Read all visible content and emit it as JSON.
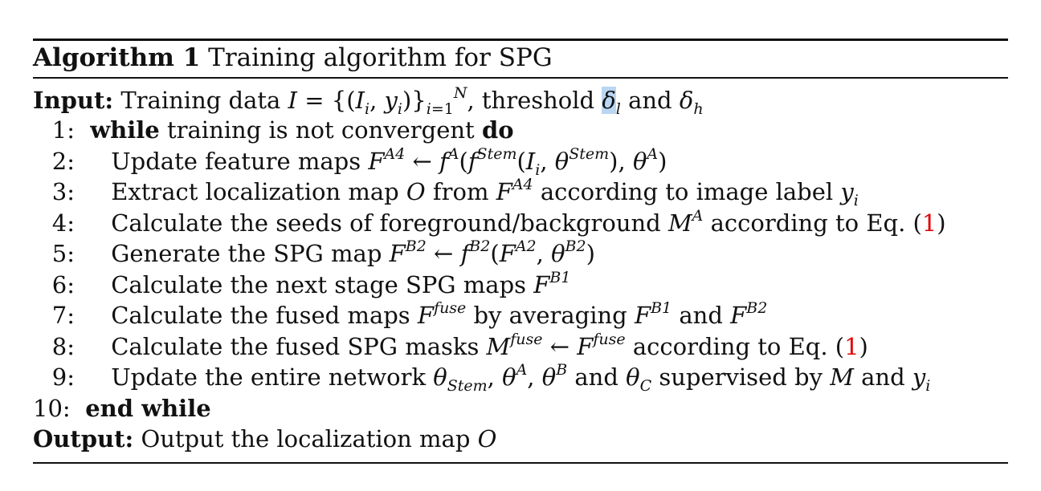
{
  "algorithm": {
    "number_label": "Algorithm 1",
    "title": "Training algorithm for SPG"
  },
  "input": {
    "label": "Input:",
    "text_a": "Training data",
    "text_b": ", threshold",
    "text_c": "and"
  },
  "steps": [
    {
      "num": "1:",
      "kw1": "while",
      "text": "training is not convergent",
      "kw2": "do"
    },
    {
      "num": "2:",
      "text": "Update feature maps"
    },
    {
      "num": "3:",
      "text_a": "Extract localization map",
      "text_b": "from",
      "text_c": "according to image label"
    },
    {
      "num": "4:",
      "text_a": "Calculate the seeds of foreground/background",
      "text_b": "according to Eq. (",
      "ref": "1",
      "text_c": ")"
    },
    {
      "num": "5:",
      "text": "Generate the SPG map"
    },
    {
      "num": "6:",
      "text": "Calculate the next stage SPG maps"
    },
    {
      "num": "7:",
      "text_a": "Calculate the fused maps",
      "text_b": "by averaging",
      "text_c": "and"
    },
    {
      "num": "8:",
      "text_a": "Calculate the fused SPG masks",
      "text_b": "according to Eq. (",
      "ref": "1",
      "text_c": ")"
    },
    {
      "num": "9:",
      "text_a": "Update the entire network",
      "text_b": "and",
      "text_c": "supervised by",
      "text_d": "and"
    },
    {
      "num": "10:",
      "kw": "end while"
    }
  ],
  "output": {
    "label": "Output:",
    "text": "Output the localization map"
  }
}
